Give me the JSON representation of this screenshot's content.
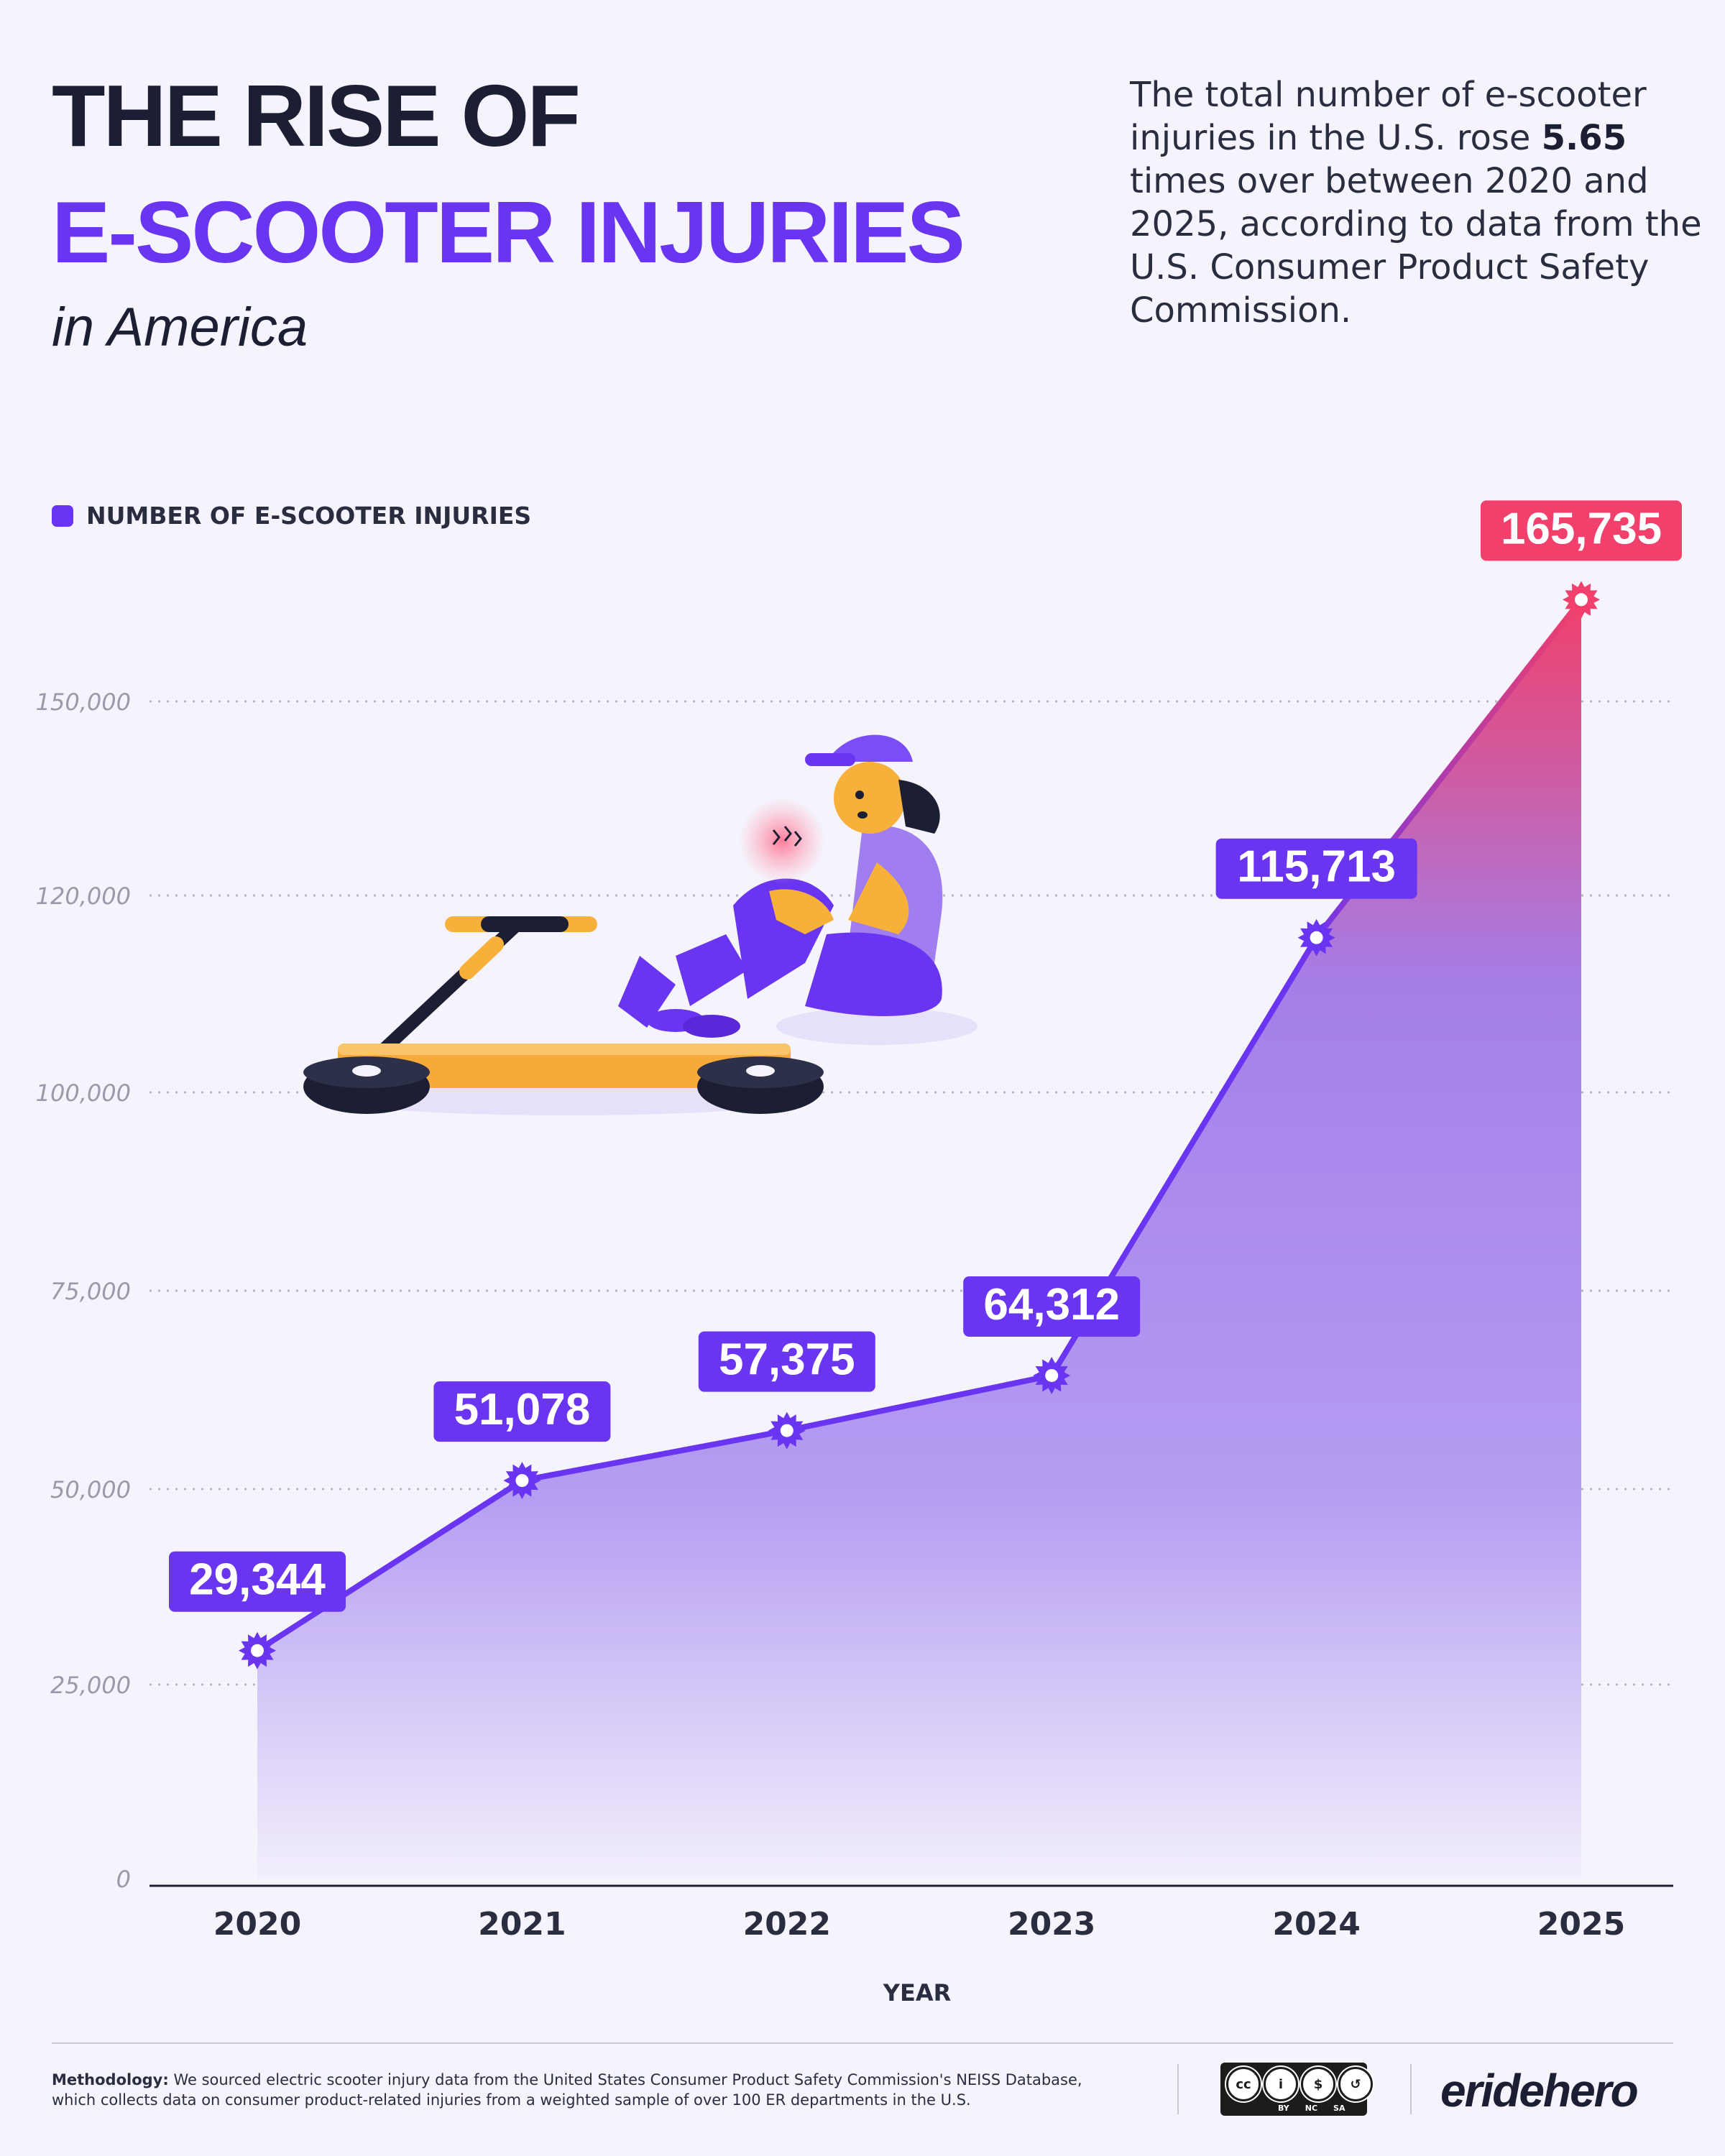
{
  "header": {
    "title_line1": "THE RISE OF",
    "title_line2": "E-SCOOTER INJURIES",
    "title_line3": "in America",
    "intro_part1": "The total number of e-scooter injuries in the U.S. rose ",
    "intro_bold": "5.65",
    "intro_part2": " times over between 2020 and 2025, according to data from the U.S. Consumer Product Safety Commission."
  },
  "legend": {
    "label": "NUMBER OF E-SCOOTER INJURIES"
  },
  "colors": {
    "accent": "#6a35f0",
    "highlight": "#f0406b",
    "dark": "#1c1f33",
    "axis_text": "#9a9aaa"
  },
  "chart_data": {
    "type": "area",
    "x": [
      "2020",
      "2021",
      "2022",
      "2023",
      "2024",
      "2025"
    ],
    "series": [
      {
        "name": "NUMBER OF E-SCOOTER INJURIES",
        "values": [
          29344,
          51078,
          57375,
          64312,
          115713,
          165735
        ]
      }
    ],
    "value_labels": [
      "29,344",
      "51,078",
      "57,375",
      "64,312",
      "115,713",
      "165,735"
    ],
    "yticks": [
      0,
      25000,
      50000,
      75000,
      100000,
      120000,
      150000
    ],
    "ytick_labels": [
      "0",
      "25,000",
      "50,000",
      "75,000",
      "100,000",
      "120,000",
      "150,000"
    ],
    "xlabel": "YEAR",
    "ylabel": "",
    "grid": true,
    "legend_position": "top-left",
    "highlighted_point": "2025"
  },
  "footer": {
    "methodology_label": "Methodology:",
    "methodology_text": " We sourced electric scooter injury data from the United States Consumer Product Safety Commission's NEISS Database, which collects data on consumer product-related injuries from a weighted sample of over 100 ER departments in the U.S.",
    "license": {
      "symbols": [
        "cc",
        "i",
        "$",
        "↺"
      ],
      "terms": [
        "BY",
        "NC",
        "SA"
      ]
    },
    "brand": "eridehero"
  }
}
